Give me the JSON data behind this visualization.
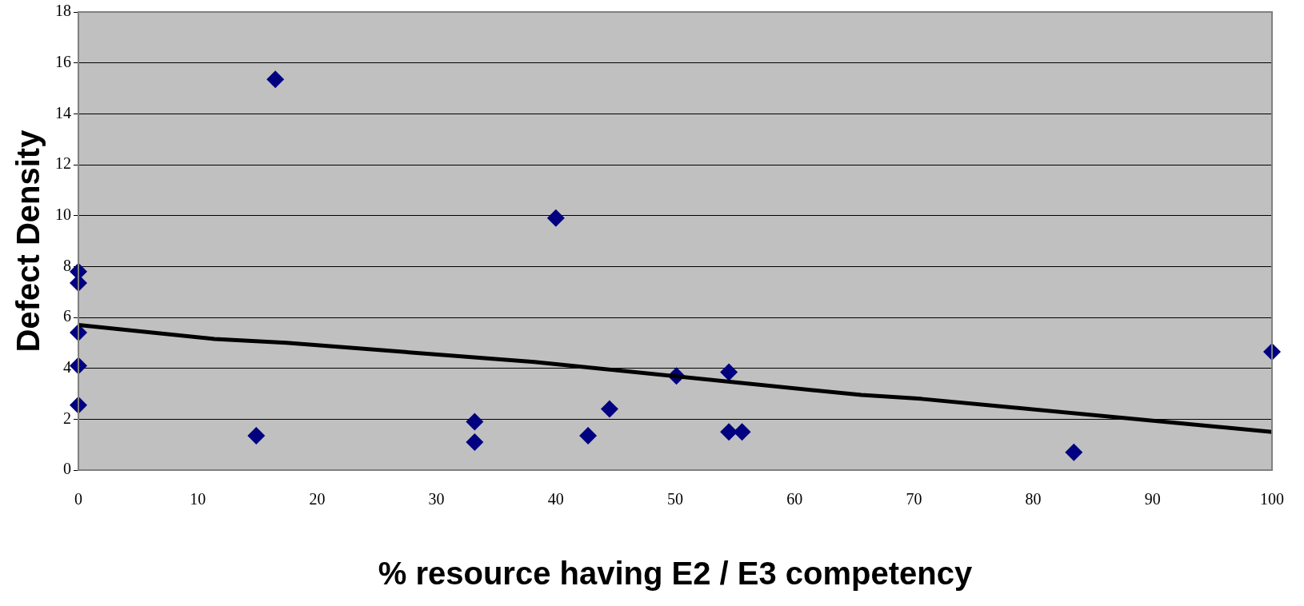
{
  "chart_data": {
    "type": "scatter",
    "xlabel": "% resource having E2 / E3 competency",
    "ylabel": "Defect Density",
    "xlim": [
      0,
      100
    ],
    "xticks": [
      0,
      10,
      20,
      30,
      40,
      50,
      60,
      70,
      80,
      90,
      100
    ],
    "ylim": [
      0,
      18
    ],
    "yticks": [
      0,
      2,
      4,
      6,
      8,
      10,
      12,
      14,
      16,
      18
    ],
    "grid": "y",
    "legend": false,
    "marker": "diamond",
    "series": [
      {
        "color": "#000080",
        "x": [
          0,
          0,
          0,
          0,
          0,
          14.9,
          16.5,
          33.2,
          33.2,
          40,
          42.7,
          44.5,
          50.1,
          54.5,
          54.5,
          55.6,
          83.4,
          100
        ],
        "values": [
          7.8,
          7.35,
          5.4,
          4.1,
          2.55,
          1.35,
          15.35,
          1.9,
          1.1,
          9.9,
          1.35,
          2.4,
          3.7,
          3.85,
          1.5,
          1.5,
          0.7,
          4.65
        ]
      },
      {
        "type": "line",
        "color": "#000000",
        "marker": "none",
        "x": [
          0,
          11.4,
          17.4,
          38.2,
          65.6,
          70.6,
          100
        ],
        "values": [
          5.7,
          5.15,
          5.0,
          4.25,
          2.95,
          2.8,
          1.5
        ]
      }
    ]
  }
}
